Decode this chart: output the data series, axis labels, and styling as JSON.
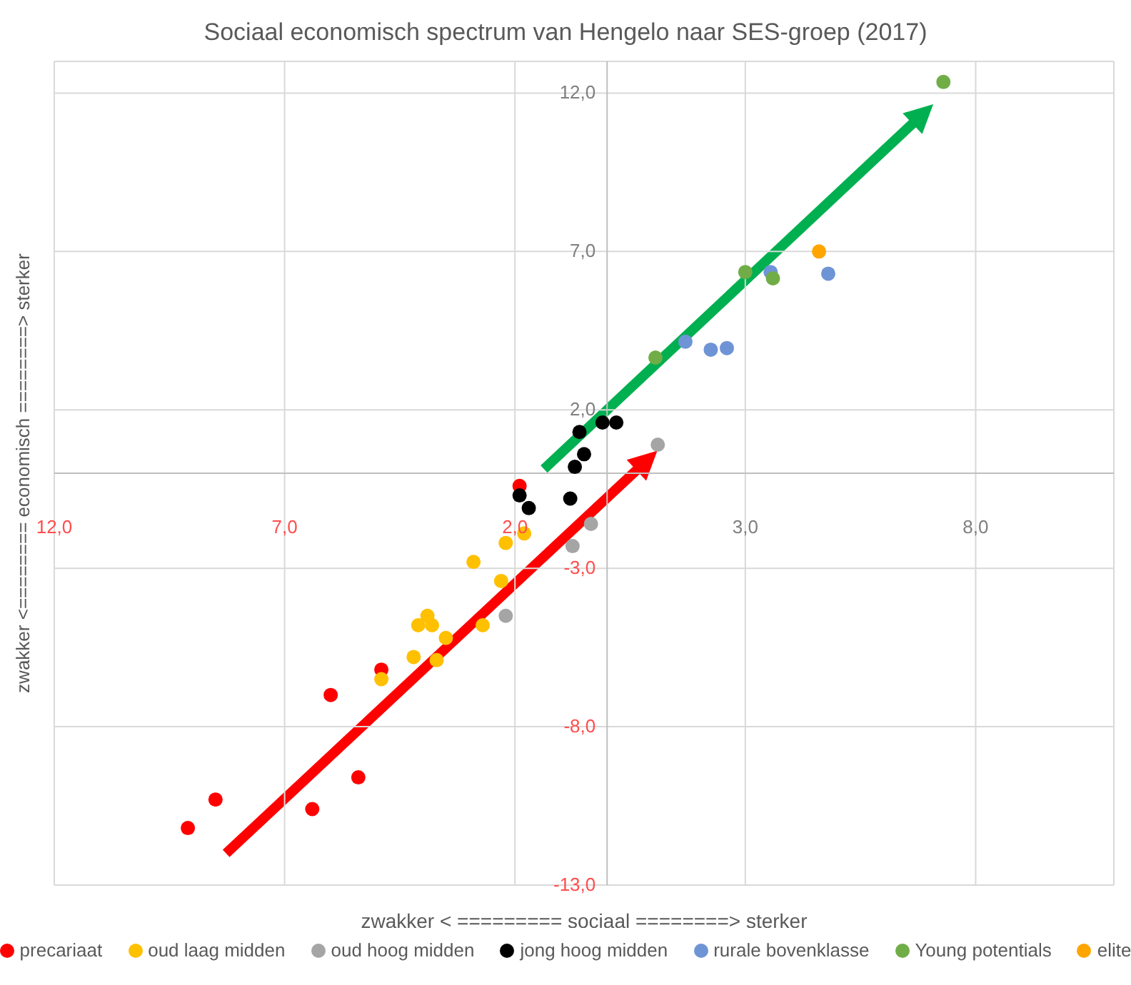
{
  "chart_data": {
    "type": "scatter",
    "title": "Sociaal economisch spectrum van Hengelo naar SES-groep (2017)",
    "xlabel": "zwakker < ========= sociaal ========> sterker",
    "ylabel": "zwakker <======== economisch ========> sterker",
    "xlim": [
      -12,
      11
    ],
    "ylim": [
      -13,
      13
    ],
    "xticks": [
      {
        "value": -12,
        "label": "12,0"
      },
      {
        "value": -7,
        "label": "7,0"
      },
      {
        "value": -2,
        "label": "2,0"
      },
      {
        "value": 3,
        "label": "3,0"
      },
      {
        "value": 8,
        "label": "8,0"
      }
    ],
    "yticks": [
      {
        "value": 12,
        "label": "12,0"
      },
      {
        "value": 7,
        "label": "7,0"
      },
      {
        "value": 2,
        "label": "2,0"
      },
      {
        "value": -3,
        "label": "-3,0"
      },
      {
        "value": -8,
        "label": "-8,0"
      },
      {
        "value": -13,
        "label": "-13,0"
      }
    ],
    "grid": true,
    "legend": "bottom",
    "marker": "circle",
    "series": [
      {
        "name": "precariaat",
        "color": "#ff0000",
        "x": [
          -9.1,
          -8.5,
          -6.0,
          -6.4,
          -5.4,
          -4.9,
          -1.9
        ],
        "values": [
          -11.2,
          -10.3,
          -7.0,
          -10.6,
          -9.6,
          -6.2,
          -0.4
        ]
      },
      {
        "name": "oud laag midden",
        "color": "#ffc000",
        "x": [
          -4.9,
          -4.2,
          -4.1,
          -3.9,
          -3.8,
          -3.5,
          -3.7,
          -2.9,
          -2.7,
          -2.3,
          -2.2,
          -1.8
        ],
        "values": [
          -6.5,
          -5.8,
          -4.8,
          -4.5,
          -4.8,
          -5.2,
          -5.9,
          -2.8,
          -4.8,
          -3.4,
          -2.2,
          -1.9
        ]
      },
      {
        "name": "oud hoog midden",
        "color": "#a5a5a5",
        "x": [
          -2.2,
          -0.75,
          -0.35,
          1.1
        ],
        "values": [
          -4.5,
          -2.3,
          -1.6,
          0.9
        ]
      },
      {
        "name": "jong hoog midden",
        "color": "#000000",
        "x": [
          -1.9,
          -1.7,
          -0.8,
          -0.7,
          -0.5,
          -0.6,
          -0.1,
          0.2
        ],
        "values": [
          -0.7,
          -1.1,
          -0.8,
          0.2,
          0.6,
          1.3,
          1.6,
          1.6
        ]
      },
      {
        "name": "rurale bovenklasse",
        "color": "#6f94d6",
        "x": [
          1.7,
          2.25,
          2.6,
          3.55,
          4.8
        ],
        "values": [
          4.15,
          3.9,
          3.95,
          6.35,
          6.3
        ]
      },
      {
        "name": "Young potentials",
        "color": "#70ad47",
        "x": [
          1.05,
          3.0,
          3.6,
          7.3
        ],
        "values": [
          3.65,
          6.35,
          6.15,
          12.35
        ]
      },
      {
        "name": "elite",
        "color": "#ffa500",
        "x": [
          4.6
        ],
        "values": [
          7.0
        ]
      }
    ]
  }
}
